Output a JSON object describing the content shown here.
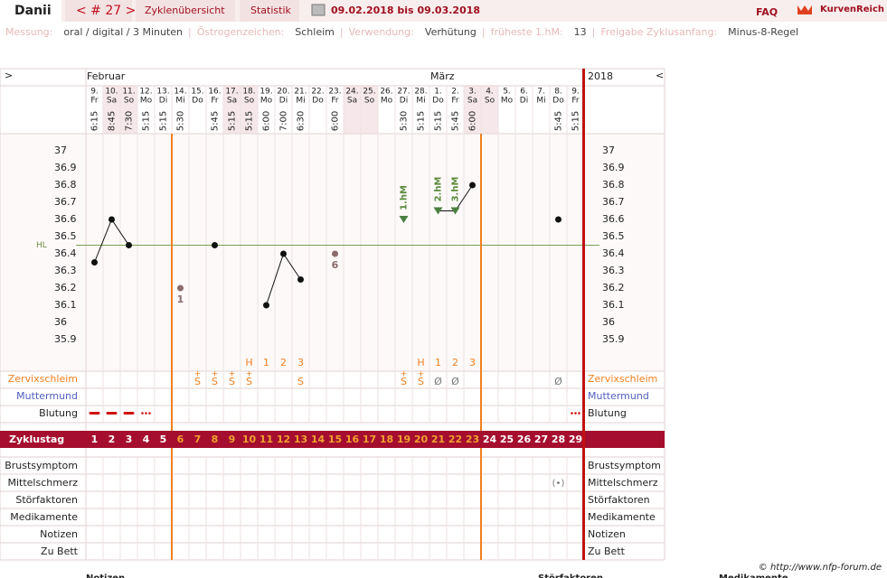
{
  "header": {
    "user": "Danii",
    "cycle": "< # 27 >",
    "tabs": [
      "Zyklenübersicht",
      "Statistik"
    ],
    "date_range": "09.02.2018 bis 09.03.2018",
    "faq": "FAQ",
    "logo": "KurvenReich"
  },
  "info": {
    "separator": "|",
    "items": [
      {
        "label": "Messung:",
        "value": "oral / digital / 3 Minuten"
      },
      {
        "label": "Östrogenzeichen:",
        "value": "Schleim"
      },
      {
        "label": "Verwendung:",
        "value": "Verhütung"
      },
      {
        "label": "früheste 1.hM:",
        "value": "13"
      },
      {
        "label": "Freigabe Zyklusanfang:",
        "value": "Minus-8-Regel"
      }
    ]
  },
  "chart": {
    "nav_left": ">",
    "nav_right": "<",
    "year": "2018",
    "months": [
      "Februar",
      null,
      null,
      null,
      null,
      null,
      null,
      null,
      null,
      null,
      null,
      null,
      null,
      null,
      null,
      null,
      null,
      null,
      null,
      null,
      "März",
      null,
      null,
      null,
      null,
      null,
      null,
      null,
      null
    ],
    "days": [
      "9.",
      "10.",
      "11.",
      "12.",
      "13.",
      "14.",
      "15.",
      "16.",
      "17.",
      "18.",
      "19.",
      "20.",
      "21.",
      "22.",
      "23.",
      "24.",
      "25.",
      "26.",
      "27.",
      "28.",
      "1.",
      "2.",
      "3.",
      "4.",
      "5.",
      "6.",
      "7.",
      "8.",
      "9."
    ],
    "weekdays": [
      "Fr",
      "Sa",
      "So",
      "Mo",
      "Di",
      "Mi",
      "Do",
      "Fr",
      "Sa",
      "So",
      "Mo",
      "Di",
      "Mi",
      "Do",
      "Fr",
      "Sa",
      "So",
      "Mo",
      "Di",
      "Mi",
      "Do",
      "Fr",
      "Sa",
      "So",
      "Mo",
      "Di",
      "Mi",
      "Do",
      "Fr"
    ],
    "times": [
      "6:15",
      "8:45",
      "7:30",
      "5:15",
      "5:15",
      "5:30",
      null,
      "5:45",
      "5:15",
      "5:15",
      "6:00",
      "7:00",
      "6:30",
      null,
      "6:00",
      null,
      null,
      null,
      "5:30",
      "5:15",
      "5:15",
      "5:45",
      "6:00",
      null,
      null,
      null,
      null,
      "5:45",
      "5:15"
    ],
    "ylim": [
      35.9,
      37
    ],
    "yticks": [
      37,
      36.9,
      36.8,
      36.7,
      36.6,
      36.5,
      36.4,
      36.3,
      36.2,
      36.1,
      36,
      35.9
    ],
    "hl_label": "HL",
    "hl": 36.45,
    "values": [
      36.35,
      36.6,
      36.45,
      null,
      null,
      null,
      null,
      36.45,
      null,
      null,
      36.1,
      36.4,
      36.25,
      null,
      null,
      null,
      null,
      null,
      36.6,
      null,
      36.65,
      36.65,
      36.8,
      null,
      null,
      null,
      null,
      36.6,
      null
    ],
    "hm_labels": [
      null,
      null,
      null,
      null,
      null,
      null,
      null,
      null,
      null,
      null,
      null,
      null,
      null,
      null,
      null,
      null,
      null,
      null,
      "1.hM",
      null,
      "2.hM",
      "3.hM",
      null,
      null,
      null,
      null,
      null,
      null,
      null
    ],
    "excluded": [
      null,
      null,
      null,
      null,
      null,
      36.2,
      null,
      null,
      null,
      null,
      null,
      null,
      null,
      null,
      36.4,
      null,
      null,
      null,
      null,
      null,
      null,
      null,
      null,
      null,
      null,
      null,
      null,
      null,
      null
    ],
    "excluded_labels": [
      null,
      null,
      null,
      null,
      null,
      "1",
      null,
      null,
      null,
      null,
      null,
      null,
      null,
      null,
      "6",
      null,
      null,
      null,
      null,
      null,
      null,
      null,
      null,
      null,
      null,
      null,
      null,
      null,
      null
    ],
    "peak": [
      null,
      null,
      null,
      null,
      null,
      null,
      null,
      null,
      null,
      "H",
      "1",
      "2",
      "3",
      null,
      null,
      null,
      null,
      null,
      null,
      "H",
      "1",
      "2",
      "3",
      null,
      null,
      null,
      null,
      null,
      null
    ],
    "mucus_plus": [
      null,
      null,
      null,
      null,
      null,
      null,
      "+",
      "+",
      "+",
      "+",
      null,
      null,
      null,
      null,
      null,
      null,
      null,
      null,
      "+",
      "+",
      null,
      null,
      null,
      null,
      null,
      null,
      null,
      null,
      null
    ],
    "mucus": [
      null,
      null,
      null,
      null,
      null,
      null,
      "S",
      "S",
      "S",
      "S",
      null,
      null,
      "S",
      null,
      null,
      null,
      null,
      null,
      "S",
      "S",
      "Ø",
      "Ø",
      null,
      null,
      null,
      null,
      null,
      "Ø",
      null
    ],
    "bleeding": [
      "dash",
      "dash",
      "dash",
      "dots",
      null,
      null,
      null,
      null,
      null,
      null,
      null,
      null,
      null,
      null,
      null,
      null,
      null,
      null,
      null,
      null,
      null,
      null,
      null,
      null,
      null,
      null,
      null,
      null,
      "dots"
    ],
    "mittelschmerz_icon": [
      null,
      null,
      null,
      null,
      null,
      null,
      null,
      null,
      null,
      null,
      null,
      null,
      null,
      null,
      null,
      null,
      null,
      null,
      null,
      null,
      null,
      null,
      null,
      null,
      null,
      null,
      null,
      "(•)",
      null
    ],
    "cycle_label": "Zyklustag",
    "cycle_days": [
      1,
      2,
      3,
      4,
      5,
      6,
      7,
      8,
      9,
      10,
      11,
      12,
      13,
      14,
      15,
      16,
      17,
      18,
      19,
      20,
      21,
      22,
      23,
      24,
      25,
      26,
      27,
      28,
      29
    ],
    "fertile_start": 6,
    "fertile_end": 23,
    "rows_top": [
      "Zervixschleim",
      "Muttermund",
      "Blutung"
    ],
    "rows_bottom": [
      "Brustsymptom",
      "Mittelschmerz",
      "Störfaktoren",
      "Medikamente",
      "Notizen",
      "Zu Bett"
    ]
  },
  "footer": {
    "copyright": "© http://www.nfp-forum.de",
    "columns": [
      "Notizen",
      "Störfaktoren",
      "Medikamente"
    ]
  }
}
